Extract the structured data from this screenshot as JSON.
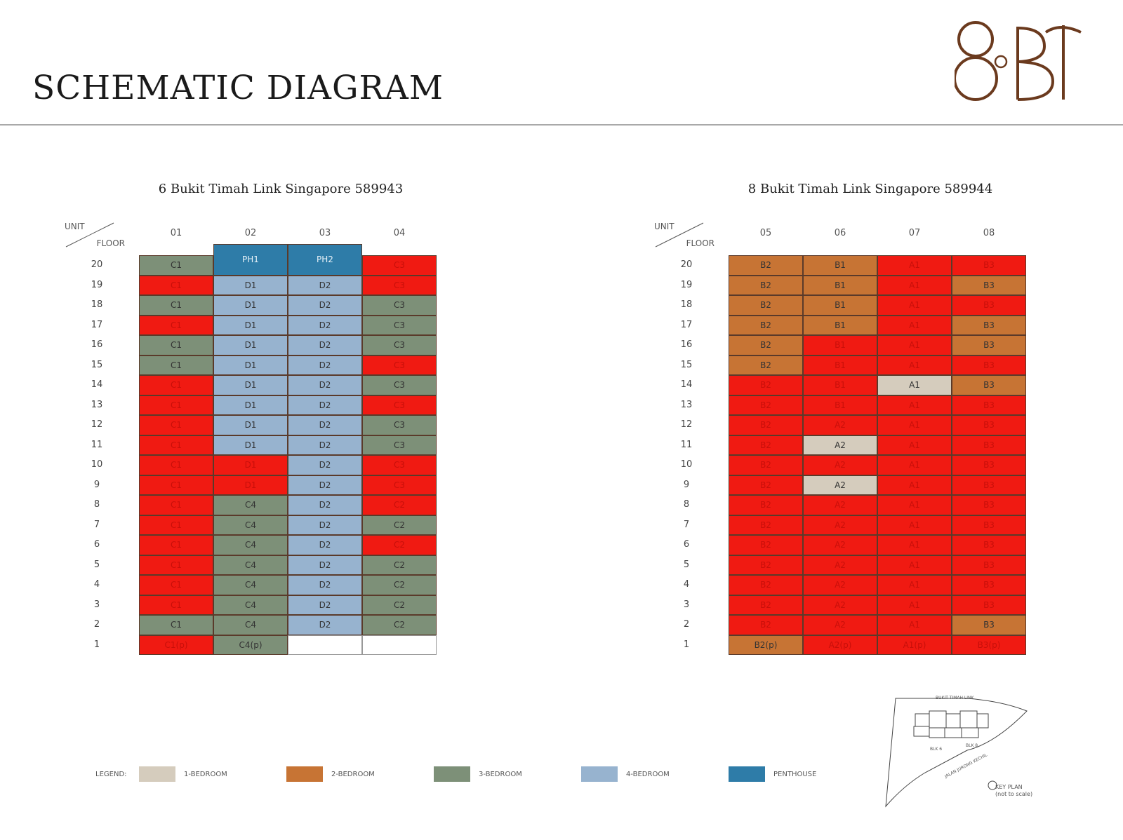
{
  "header": {
    "title": "SCHEMATIC DIAGRAM",
    "logo_text": "8@BT",
    "logo_color": "#6b3a1e"
  },
  "colors": {
    "one_bedroom": "#d5ccbd",
    "two_bedroom": "#c77434",
    "three_bedroom": "#7d9078",
    "four_bedroom": "#97b3cf",
    "penthouse": "#2e7ca8",
    "sold": "#f01a12",
    "empty": "#ffffff"
  },
  "corner_labels": {
    "unit": "UNIT",
    "floor": "FLOOR"
  },
  "blocks": [
    {
      "title": "6 Bukit Timah Link Singapore 589943",
      "units": [
        "01",
        "02",
        "03",
        "04"
      ],
      "rows": [
        {
          "floor": "20",
          "cells": [
            [
              "C1",
              "3"
            ],
            [
              "PH1",
              "P"
            ],
            [
              "PH2",
              "P"
            ],
            [
              "C3",
              "S"
            ]
          ]
        },
        {
          "floor": "19",
          "cells": [
            [
              "C1",
              "S"
            ],
            [
              "D1",
              "4"
            ],
            [
              "D2",
              "4"
            ],
            [
              "C3",
              "S"
            ]
          ]
        },
        {
          "floor": "18",
          "cells": [
            [
              "C1",
              "3"
            ],
            [
              "D1",
              "4"
            ],
            [
              "D2",
              "4"
            ],
            [
              "C3",
              "3"
            ]
          ]
        },
        {
          "floor": "17",
          "cells": [
            [
              "C1",
              "S"
            ],
            [
              "D1",
              "4"
            ],
            [
              "D2",
              "4"
            ],
            [
              "C3",
              "3"
            ]
          ]
        },
        {
          "floor": "16",
          "cells": [
            [
              "C1",
              "3"
            ],
            [
              "D1",
              "4"
            ],
            [
              "D2",
              "4"
            ],
            [
              "C3",
              "3"
            ]
          ]
        },
        {
          "floor": "15",
          "cells": [
            [
              "C1",
              "3"
            ],
            [
              "D1",
              "4"
            ],
            [
              "D2",
              "4"
            ],
            [
              "C3",
              "S"
            ]
          ]
        },
        {
          "floor": "14",
          "cells": [
            [
              "C1",
              "S"
            ],
            [
              "D1",
              "4"
            ],
            [
              "D2",
              "4"
            ],
            [
              "C3",
              "3"
            ]
          ]
        },
        {
          "floor": "13",
          "cells": [
            [
              "C1",
              "S"
            ],
            [
              "D1",
              "4"
            ],
            [
              "D2",
              "4"
            ],
            [
              "C3",
              "S"
            ]
          ]
        },
        {
          "floor": "12",
          "cells": [
            [
              "C1",
              "S"
            ],
            [
              "D1",
              "4"
            ],
            [
              "D2",
              "4"
            ],
            [
              "C3",
              "3"
            ]
          ]
        },
        {
          "floor": "11",
          "cells": [
            [
              "C1",
              "S"
            ],
            [
              "D1",
              "4"
            ],
            [
              "D2",
              "4"
            ],
            [
              "C3",
              "3"
            ]
          ]
        },
        {
          "floor": "10",
          "cells": [
            [
              "C1",
              "S"
            ],
            [
              "D1",
              "S"
            ],
            [
              "D2",
              "4"
            ],
            [
              "C3",
              "S"
            ]
          ]
        },
        {
          "floor": "9",
          "cells": [
            [
              "C1",
              "S"
            ],
            [
              "D1",
              "S"
            ],
            [
              "D2",
              "4"
            ],
            [
              "C3",
              "S"
            ]
          ]
        },
        {
          "floor": "8",
          "cells": [
            [
              "C1",
              "S"
            ],
            [
              "C4",
              "3"
            ],
            [
              "D2",
              "4"
            ],
            [
              "C2",
              "S"
            ]
          ]
        },
        {
          "floor": "7",
          "cells": [
            [
              "C1",
              "S"
            ],
            [
              "C4",
              "3"
            ],
            [
              "D2",
              "4"
            ],
            [
              "C2",
              "3"
            ]
          ]
        },
        {
          "floor": "6",
          "cells": [
            [
              "C1",
              "S"
            ],
            [
              "C4",
              "3"
            ],
            [
              "D2",
              "4"
            ],
            [
              "C2",
              "S"
            ]
          ]
        },
        {
          "floor": "5",
          "cells": [
            [
              "C1",
              "S"
            ],
            [
              "C4",
              "3"
            ],
            [
              "D2",
              "4"
            ],
            [
              "C2",
              "3"
            ]
          ]
        },
        {
          "floor": "4",
          "cells": [
            [
              "C1",
              "S"
            ],
            [
              "C4",
              "3"
            ],
            [
              "D2",
              "4"
            ],
            [
              "C2",
              "3"
            ]
          ]
        },
        {
          "floor": "3",
          "cells": [
            [
              "C1",
              "S"
            ],
            [
              "C4",
              "3"
            ],
            [
              "D2",
              "4"
            ],
            [
              "C2",
              "3"
            ]
          ]
        },
        {
          "floor": "2",
          "cells": [
            [
              "C1",
              "3"
            ],
            [
              "C4",
              "3"
            ],
            [
              "D2",
              "4"
            ],
            [
              "C2",
              "3"
            ]
          ]
        },
        {
          "floor": "1",
          "cells": [
            [
              "C1(p)",
              "S"
            ],
            [
              "C4(p)",
              "3"
            ],
            [
              "",
              "E"
            ],
            [
              "",
              "E"
            ]
          ]
        }
      ]
    },
    {
      "title": "8 Bukit Timah Link Singapore 589944",
      "units": [
        "05",
        "06",
        "07",
        "08"
      ],
      "rows": [
        {
          "floor": "20",
          "cells": [
            [
              "B2",
              "2"
            ],
            [
              "B1",
              "2"
            ],
            [
              "A1",
              "S"
            ],
            [
              "B3",
              "S"
            ]
          ]
        },
        {
          "floor": "19",
          "cells": [
            [
              "B2",
              "2"
            ],
            [
              "B1",
              "2"
            ],
            [
              "A1",
              "S"
            ],
            [
              "B3",
              "2"
            ]
          ]
        },
        {
          "floor": "18",
          "cells": [
            [
              "B2",
              "2"
            ],
            [
              "B1",
              "2"
            ],
            [
              "A1",
              "S"
            ],
            [
              "B3",
              "S"
            ]
          ]
        },
        {
          "floor": "17",
          "cells": [
            [
              "B2",
              "2"
            ],
            [
              "B1",
              "2"
            ],
            [
              "A1",
              "S"
            ],
            [
              "B3",
              "2"
            ]
          ]
        },
        {
          "floor": "16",
          "cells": [
            [
              "B2",
              "2"
            ],
            [
              "B1",
              "S"
            ],
            [
              "A1",
              "S"
            ],
            [
              "B3",
              "2"
            ]
          ]
        },
        {
          "floor": "15",
          "cells": [
            [
              "B2",
              "2"
            ],
            [
              "B1",
              "S"
            ],
            [
              "A1",
              "S"
            ],
            [
              "B3",
              "S"
            ]
          ]
        },
        {
          "floor": "14",
          "cells": [
            [
              "B2",
              "S"
            ],
            [
              "B1",
              "S"
            ],
            [
              "A1",
              "1"
            ],
            [
              "B3",
              "2"
            ]
          ]
        },
        {
          "floor": "13",
          "cells": [
            [
              "B2",
              "S"
            ],
            [
              "B1",
              "S"
            ],
            [
              "A1",
              "S"
            ],
            [
              "B3",
              "S"
            ]
          ]
        },
        {
          "floor": "12",
          "cells": [
            [
              "B2",
              "S"
            ],
            [
              "A2",
              "S"
            ],
            [
              "A1",
              "S"
            ],
            [
              "B3",
              "S"
            ]
          ]
        },
        {
          "floor": "11",
          "cells": [
            [
              "B2",
              "S"
            ],
            [
              "A2",
              "1"
            ],
            [
              "A1",
              "S"
            ],
            [
              "B3",
              "S"
            ]
          ]
        },
        {
          "floor": "10",
          "cells": [
            [
              "B2",
              "S"
            ],
            [
              "A2",
              "S"
            ],
            [
              "A1",
              "S"
            ],
            [
              "B3",
              "S"
            ]
          ]
        },
        {
          "floor": "9",
          "cells": [
            [
              "B2",
              "S"
            ],
            [
              "A2",
              "1"
            ],
            [
              "A1",
              "S"
            ],
            [
              "B3",
              "S"
            ]
          ]
        },
        {
          "floor": "8",
          "cells": [
            [
              "B2",
              "S"
            ],
            [
              "A2",
              "S"
            ],
            [
              "A1",
              "S"
            ],
            [
              "B3",
              "S"
            ]
          ]
        },
        {
          "floor": "7",
          "cells": [
            [
              "B2",
              "S"
            ],
            [
              "A2",
              "S"
            ],
            [
              "A1",
              "S"
            ],
            [
              "B3",
              "S"
            ]
          ]
        },
        {
          "floor": "6",
          "cells": [
            [
              "B2",
              "S"
            ],
            [
              "A2",
              "S"
            ],
            [
              "A1",
              "S"
            ],
            [
              "B3",
              "S"
            ]
          ]
        },
        {
          "floor": "5",
          "cells": [
            [
              "B2",
              "S"
            ],
            [
              "A2",
              "S"
            ],
            [
              "A1",
              "S"
            ],
            [
              "B3",
              "S"
            ]
          ]
        },
        {
          "floor": "4",
          "cells": [
            [
              "B2",
              "S"
            ],
            [
              "A2",
              "S"
            ],
            [
              "A1",
              "S"
            ],
            [
              "B3",
              "S"
            ]
          ]
        },
        {
          "floor": "3",
          "cells": [
            [
              "B2",
              "S"
            ],
            [
              "A2",
              "S"
            ],
            [
              "A1",
              "S"
            ],
            [
              "B3",
              "S"
            ]
          ]
        },
        {
          "floor": "2",
          "cells": [
            [
              "B2",
              "S"
            ],
            [
              "A2",
              "S"
            ],
            [
              "A1",
              "S"
            ],
            [
              "B3",
              "2"
            ]
          ]
        },
        {
          "floor": "1",
          "cells": [
            [
              "B2(p)",
              "2"
            ],
            [
              "A2(p)",
              "S"
            ],
            [
              "A1(p)",
              "S"
            ],
            [
              "B3(p)",
              "S"
            ]
          ]
        }
      ]
    }
  ],
  "legend": {
    "title": "LEGEND:",
    "items": [
      {
        "label": "1-BEDROOM",
        "color": "#d5ccbd"
      },
      {
        "label": "2-BEDROOM",
        "color": "#c77434"
      },
      {
        "label": "3-BEDROOM",
        "color": "#7d9078"
      },
      {
        "label": "4-BEDROOM",
        "color": "#97b3cf"
      },
      {
        "label": "PENTHOUSE",
        "color": "#2e7ca8"
      }
    ]
  },
  "keyplan": {
    "road_top": "BUKIT TIMAH LINK",
    "road_bottom": "JALAN JURONG KECHIL",
    "blk6": "BLK 6",
    "blk8": "BLK 8",
    "label": "KEY PLAN",
    "sublabel": "(not to scale)"
  }
}
